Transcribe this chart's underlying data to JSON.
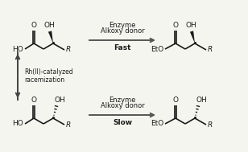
{
  "bg_color": "#f5f5f0",
  "line_color": "#1a1a1a",
  "line_width": 1.2,
  "arrow_color": "#555555",
  "text_color": "#1a1a1a",
  "top_arrow_label1": "Enzyme",
  "top_arrow_label2": "Alkoxy donor",
  "top_arrow_speed": "Fast",
  "bottom_arrow_label1": "Enzyme",
  "bottom_arrow_label2": "Alkoxy donor",
  "bottom_arrow_speed": "Slow",
  "side_arrow_label1": "Rh(II)-catalyzed",
  "side_arrow_label2": "racemization",
  "fig_width": 3.08,
  "fig_height": 1.89,
  "dpi": 100
}
